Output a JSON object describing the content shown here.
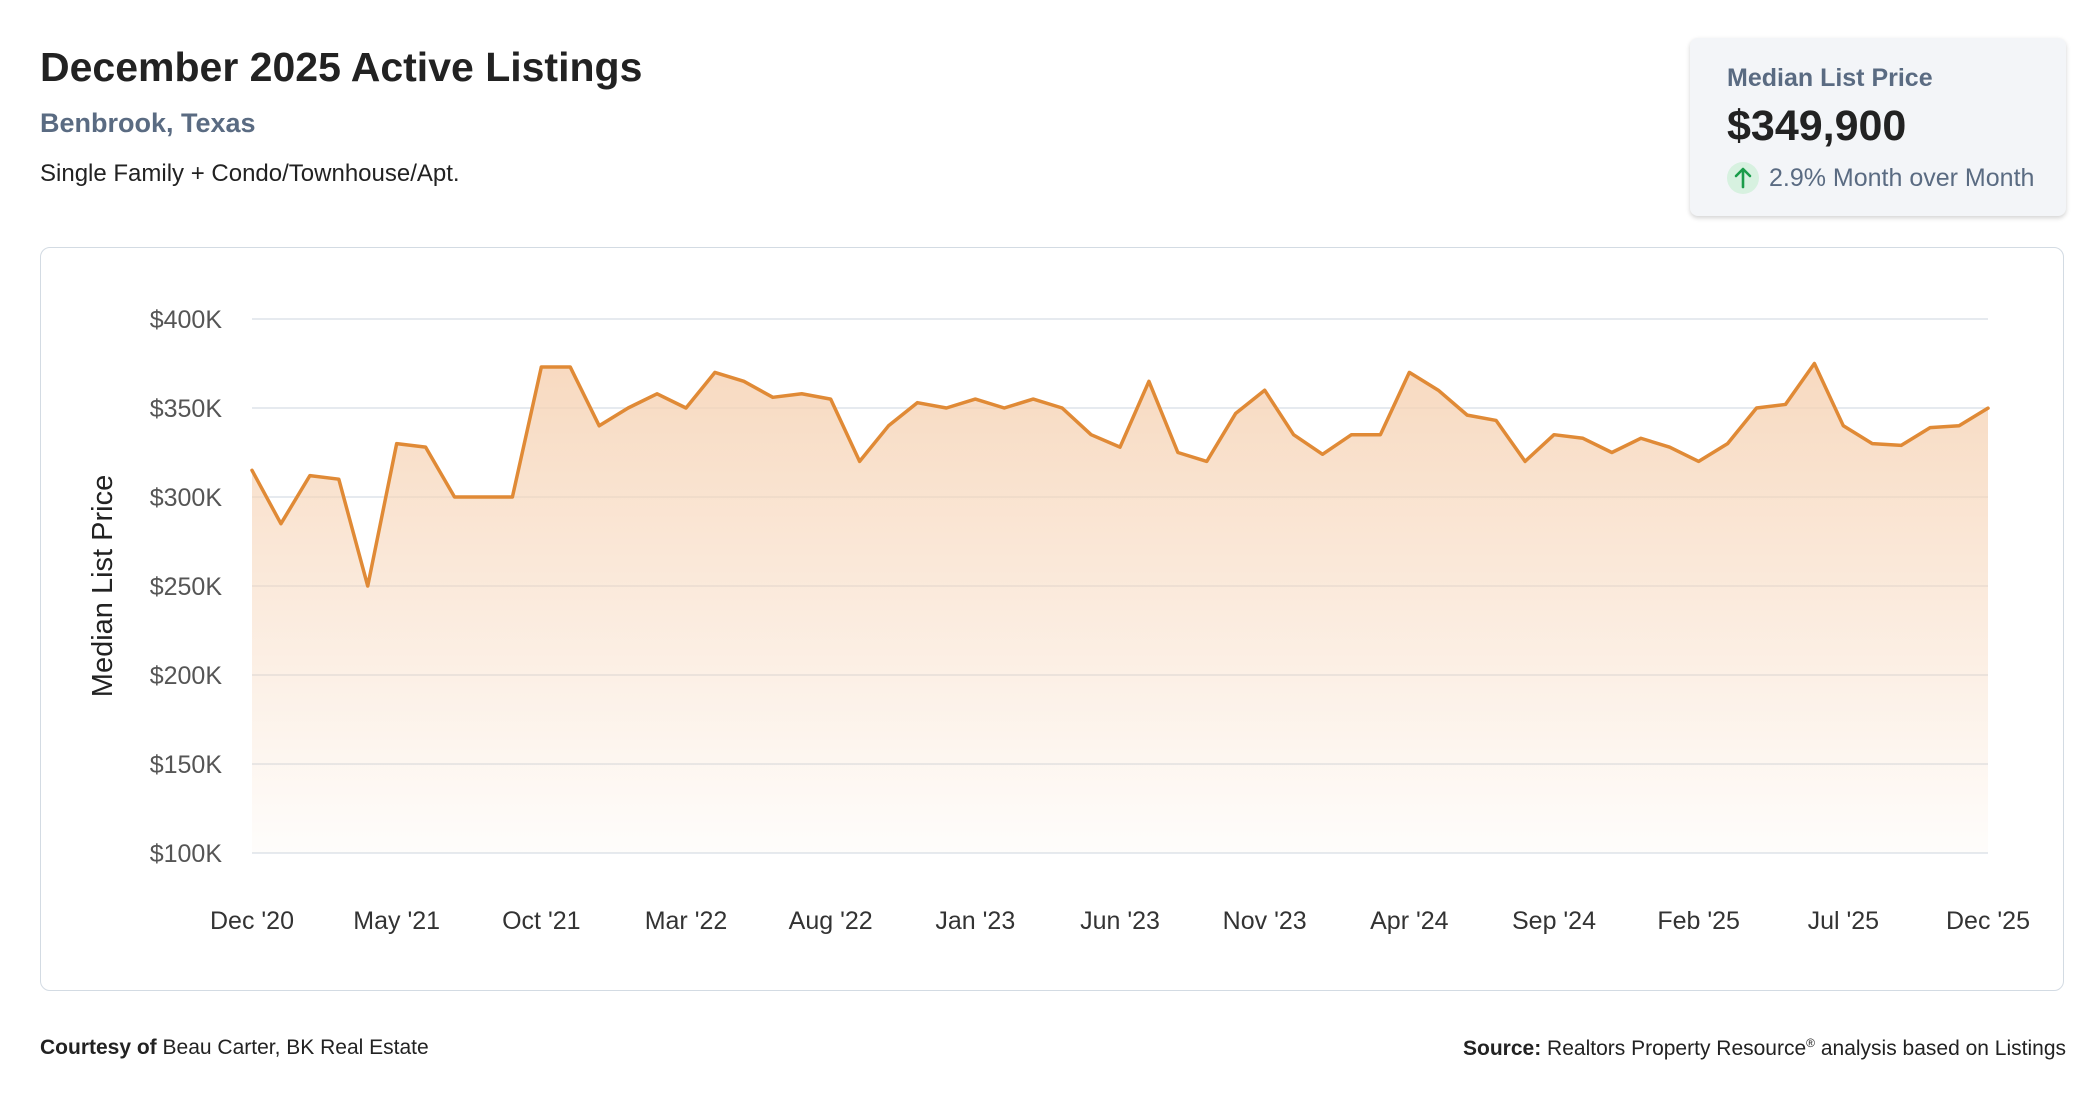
{
  "header": {
    "title": "December 2025 Active Listings",
    "location": "Benbrook, Texas",
    "segment": "Single Family + Condo/Townhouse/Apt."
  },
  "kpi": {
    "label": "Median List Price",
    "value": "$349,900",
    "change": "2.9% Month over Month",
    "direction_icon": "arrow-up-icon",
    "icon_color": "#1a9c4a",
    "icon_bg": "#d7f1e0"
  },
  "footer": {
    "courtesy_label": "Courtesy of",
    "courtesy_name": "Beau Carter, BK Real Estate",
    "source_label": "Source:",
    "source_name": "Realtors Property Resource",
    "source_mark": "®",
    "source_rest": "analysis based on Listings"
  },
  "colors": {
    "line": "#e08a36",
    "fill_top": "#f6d3b5",
    "grid": "#dde3ea",
    "axis_text": "#555555"
  },
  "chart_data": {
    "type": "area",
    "title": "",
    "xlabel": "",
    "ylabel": "Median List Price",
    "ylim": [
      100000,
      400000
    ],
    "y_ticks": [
      100000,
      150000,
      200000,
      250000,
      300000,
      350000,
      400000
    ],
    "y_tick_labels": [
      "$100K",
      "$150K",
      "$200K",
      "$250K",
      "$300K",
      "$350K",
      "$400K"
    ],
    "x_tick_labels": [
      "Dec '20",
      "May '21",
      "Oct '21",
      "Mar '22",
      "Aug '22",
      "Jan '23",
      "Jun '23",
      "Nov '23",
      "Apr '24",
      "Sep '24",
      "Feb '25",
      "Jul '25",
      "Dec '25"
    ],
    "x_tick_every": 5,
    "grid": true,
    "series": [
      {
        "values": [
          315000,
          285000,
          312000,
          310000,
          250000,
          330000,
          328000,
          300000,
          300000,
          300000,
          373000,
          373000,
          340000,
          350000,
          358000,
          350000,
          370000,
          365000,
          356000,
          358000,
          355000,
          320000,
          340000,
          353000,
          350000,
          355000,
          350000,
          355000,
          350000,
          335000,
          328000,
          365000,
          325000,
          320000,
          347000,
          360000,
          335000,
          324000,
          335000,
          335000,
          370000,
          360000,
          346000,
          343000,
          320000,
          335000,
          333000,
          325000,
          333000,
          328000,
          320000,
          330000,
          350000,
          352000,
          375000,
          340000,
          330000,
          329000,
          339000,
          340000,
          349900
        ]
      }
    ]
  }
}
